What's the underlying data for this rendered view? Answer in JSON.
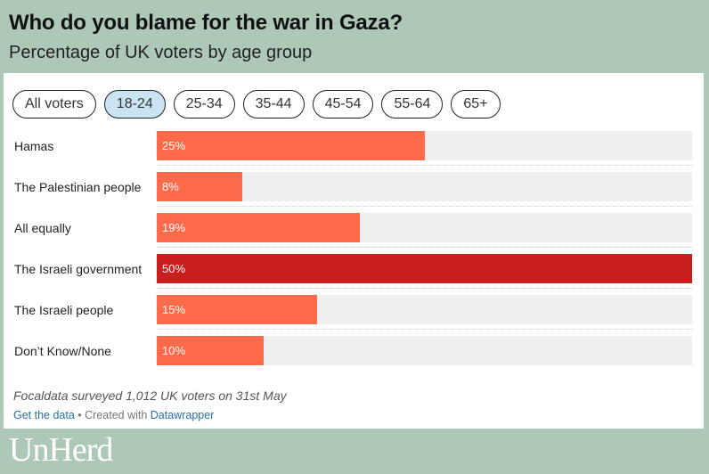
{
  "title": "Who do you blame for the war in Gaza?",
  "subtitle": "Percentage of UK voters by age group",
  "tabs": [
    {
      "label": "All voters",
      "active": false
    },
    {
      "label": "18-24",
      "active": true
    },
    {
      "label": "25-34",
      "active": false
    },
    {
      "label": "35-44",
      "active": false
    },
    {
      "label": "45-54",
      "active": false
    },
    {
      "label": "55-64",
      "active": false
    },
    {
      "label": "65+",
      "active": false
    }
  ],
  "chart_data": {
    "type": "bar",
    "orientation": "horizontal",
    "categories": [
      "Hamas",
      "The Palestinian people",
      "All equally",
      "The Israeli government",
      "The Israeli people",
      "Don’t Know/None"
    ],
    "values": [
      25,
      8,
      19,
      50,
      15,
      10
    ],
    "value_labels": [
      "25%",
      "8%",
      "19%",
      "50%",
      "15%",
      "10%"
    ],
    "xlim": [
      0,
      50
    ],
    "highlight_index": 3,
    "colors": {
      "bar": "#ff6a4a",
      "highlight": "#c81e1e",
      "track": "#efefef"
    },
    "title": "Who do you blame for the war in Gaza?",
    "subtitle": "Percentage of UK voters by age group"
  },
  "note": "Focaldata surveyed 1,012 UK voters on 31st May",
  "footer": {
    "get_data": "Get the data",
    "separator": " • Created with ",
    "tool": "Datawrapper"
  },
  "logo": "UnHerd",
  "colors": {
    "background": "#aec8b8",
    "active_tab": "#c9e3f3",
    "link": "#2a6fa8"
  }
}
